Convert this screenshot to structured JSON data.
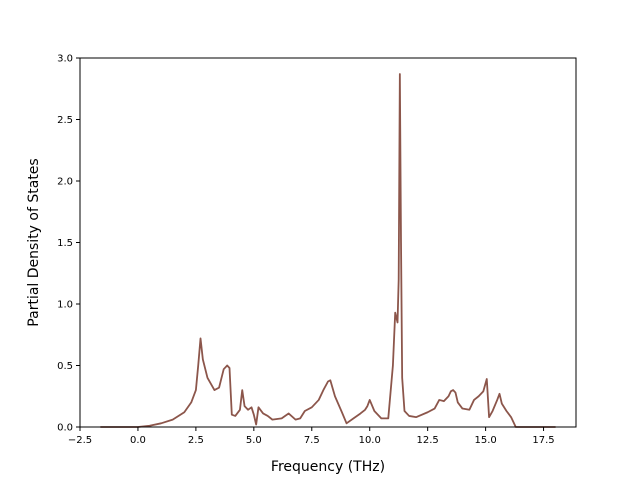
{
  "chart_data": {
    "type": "line",
    "title": "",
    "xlabel": "Frequency (THz)",
    "ylabel": "Partial Density of States",
    "xlim": [
      -2.5,
      18.9
    ],
    "ylim": [
      0.0,
      3.0
    ],
    "x_ticks": [
      -2.5,
      0.0,
      2.5,
      5.0,
      7.5,
      10.0,
      12.5,
      15.0,
      17.5
    ],
    "x_tick_labels": [
      "−2.5",
      "0.0",
      "2.5",
      "5.0",
      "7.5",
      "10.0",
      "12.5",
      "15.0",
      "17.5"
    ],
    "y_ticks": [
      0.0,
      0.5,
      1.0,
      1.5,
      2.0,
      2.5,
      3.0
    ],
    "y_tick_labels": [
      "0.0",
      "0.5",
      "1.0",
      "1.5",
      "2.0",
      "2.5",
      "3.0"
    ],
    "grid": false,
    "series": [
      {
        "color": "#8c564b",
        "x": [
          -1.6,
          -1.0,
          -0.5,
          0.0,
          0.5,
          1.0,
          1.5,
          2.0,
          2.3,
          2.5,
          2.6,
          2.7,
          2.8,
          3.0,
          3.3,
          3.5,
          3.7,
          3.85,
          3.95,
          4.05,
          4.2,
          4.4,
          4.5,
          4.6,
          4.75,
          4.9,
          5.0,
          5.1,
          5.2,
          5.4,
          5.6,
          5.8,
          6.2,
          6.5,
          6.8,
          7.0,
          7.2,
          7.5,
          7.8,
          8.0,
          8.2,
          8.3,
          8.5,
          8.8,
          9.0,
          9.3,
          9.6,
          9.8,
          9.9,
          10.0,
          10.2,
          10.5,
          10.8,
          11.0,
          11.1,
          11.2,
          11.25,
          11.3,
          11.35,
          11.4,
          11.5,
          11.7,
          12.0,
          12.5,
          12.8,
          13.0,
          13.2,
          13.4,
          13.5,
          13.6,
          13.7,
          13.8,
          14.0,
          14.3,
          14.5,
          14.7,
          14.9,
          15.05,
          15.15,
          15.3,
          15.5,
          15.6,
          15.7,
          15.9,
          16.1,
          16.3,
          16.5,
          17.0,
          17.5,
          18.0
        ],
        "y": [
          0.0,
          0.0,
          0.0,
          0.0,
          0.01,
          0.03,
          0.06,
          0.12,
          0.2,
          0.3,
          0.5,
          0.72,
          0.55,
          0.4,
          0.3,
          0.32,
          0.47,
          0.5,
          0.48,
          0.1,
          0.09,
          0.14,
          0.3,
          0.17,
          0.14,
          0.16,
          0.1,
          0.02,
          0.16,
          0.11,
          0.09,
          0.06,
          0.07,
          0.11,
          0.06,
          0.07,
          0.13,
          0.16,
          0.22,
          0.3,
          0.37,
          0.38,
          0.25,
          0.12,
          0.03,
          0.07,
          0.11,
          0.14,
          0.17,
          0.22,
          0.13,
          0.07,
          0.07,
          0.5,
          0.93,
          0.85,
          1.2,
          2.87,
          1.5,
          0.4,
          0.13,
          0.09,
          0.08,
          0.12,
          0.15,
          0.22,
          0.21,
          0.25,
          0.29,
          0.3,
          0.28,
          0.2,
          0.15,
          0.14,
          0.22,
          0.25,
          0.29,
          0.39,
          0.08,
          0.13,
          0.22,
          0.27,
          0.19,
          0.13,
          0.08,
          0.0,
          0.0,
          0.0,
          0.0,
          0.0
        ]
      }
    ]
  }
}
